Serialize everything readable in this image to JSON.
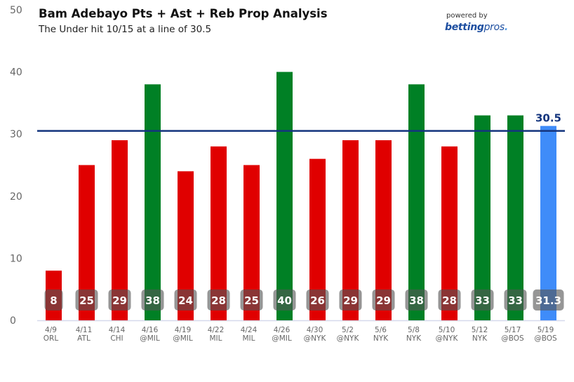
{
  "header": {
    "title": "Bam Adebayo Pts + Ast + Reb Prop Analysis",
    "subtitle": "The Under hit 10/15 at a line of 30.5",
    "powered_by": "powered by",
    "brand_bold": "betting",
    "brand_light": "pros",
    "brand_dot": "."
  },
  "colors": {
    "under": "#e00000",
    "over": "#008025",
    "projection": "#3f8cf9",
    "line": "#14357e",
    "label_box": "#555555",
    "axis": "#d6d9ec",
    "tick_text": "#666666"
  },
  "chart_data": {
    "type": "bar",
    "title": "Bam Adebayo Pts + Ast + Reb Prop Analysis",
    "subtitle": "The Under hit 10/15 at a line of 30.5",
    "xlabel": "",
    "ylabel": "",
    "ylim": [
      0,
      50
    ],
    "yticks": [
      0,
      10,
      20,
      30,
      40,
      50
    ],
    "grid": false,
    "categories": [
      {
        "date": "4/9",
        "opponent": "ORL"
      },
      {
        "date": "4/11",
        "opponent": "ATL"
      },
      {
        "date": "4/14",
        "opponent": "CHI"
      },
      {
        "date": "4/16",
        "opponent": "@MIL"
      },
      {
        "date": "4/19",
        "opponent": "@MIL"
      },
      {
        "date": "4/22",
        "opponent": "MIL"
      },
      {
        "date": "4/24",
        "opponent": "MIL"
      },
      {
        "date": "4/26",
        "opponent": "@MIL"
      },
      {
        "date": "4/30",
        "opponent": "@NYK"
      },
      {
        "date": "5/2",
        "opponent": "@NYK"
      },
      {
        "date": "5/6",
        "opponent": "NYK"
      },
      {
        "date": "5/8",
        "opponent": "NYK"
      },
      {
        "date": "5/10",
        "opponent": "@NYK"
      },
      {
        "date": "5/12",
        "opponent": "NYK"
      },
      {
        "date": "5/17",
        "opponent": "@BOS"
      },
      {
        "date": "5/19",
        "opponent": "@BOS"
      }
    ],
    "values": [
      8,
      25,
      29,
      38,
      24,
      28,
      25,
      40,
      26,
      29,
      29,
      38,
      28,
      33,
      33,
      31.3
    ],
    "value_labels": [
      "8",
      "25",
      "29",
      "38",
      "24",
      "28",
      "25",
      "40",
      "26",
      "29",
      "29",
      "38",
      "28",
      "33",
      "33",
      "31.3"
    ],
    "bar_status": [
      "under",
      "under",
      "under",
      "over",
      "under",
      "under",
      "under",
      "over",
      "under",
      "under",
      "under",
      "over",
      "under",
      "over",
      "over",
      "projection"
    ],
    "prop_line": {
      "value": 30.5,
      "label": "30.5"
    }
  }
}
